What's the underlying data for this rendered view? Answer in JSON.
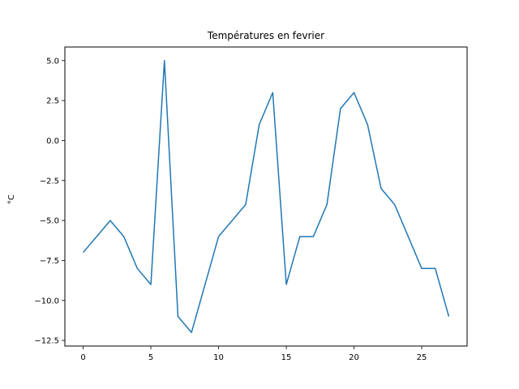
{
  "chart_data": {
    "type": "line",
    "title": "Températures en fevrier",
    "xlabel": "",
    "ylabel": "°C",
    "x": [
      0,
      1,
      2,
      3,
      4,
      5,
      6,
      7,
      8,
      9,
      10,
      11,
      12,
      13,
      14,
      15,
      16,
      17,
      18,
      19,
      20,
      21,
      22,
      23,
      24,
      25,
      26,
      27
    ],
    "series": [
      {
        "values": [
          -7,
          -6,
          -5,
          -6,
          -8,
          -9,
          5,
          -11,
          -12,
          -9,
          -6,
          -5,
          -4,
          1,
          3,
          -9,
          -6,
          -6,
          -4,
          2,
          3,
          1,
          -3,
          -4,
          -6,
          -8,
          -8,
          -11
        ],
        "color": "#1f77b4"
      }
    ],
    "xlim": [
      -1.35,
      28.35
    ],
    "ylim": [
      -12.85,
      5.85
    ],
    "x_ticks": [
      0,
      5,
      10,
      15,
      20,
      25
    ],
    "x_tick_labels": [
      "0",
      "5",
      "10",
      "15",
      "20",
      "25"
    ],
    "y_ticks": [
      5,
      2.5,
      0,
      -2.5,
      -5,
      -7.5,
      -10,
      -12.5
    ],
    "y_tick_labels": [
      "5.0",
      "2.5",
      "0.0",
      "−2.5",
      "−5.0",
      "−7.5",
      "−10.0",
      "−12.5"
    ],
    "grid": false,
    "legend": "none"
  }
}
